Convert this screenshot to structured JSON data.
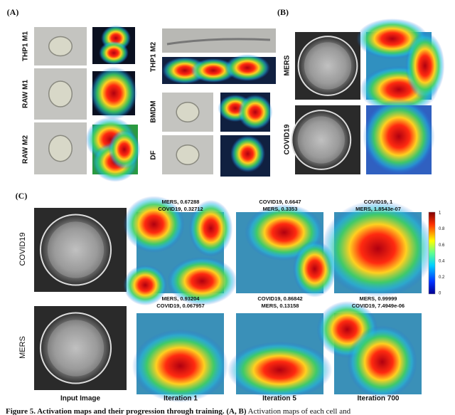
{
  "panel_a": {
    "label": "(A)",
    "cell_types": [
      "THP1 M1",
      "RAW M1",
      "RAW M2",
      "THP1 M2",
      "BMDM",
      "DF"
    ]
  },
  "panel_b": {
    "label": "(B)",
    "classes": [
      "MERS",
      "COVID19"
    ]
  },
  "panel_c": {
    "label": "(C)",
    "rows": [
      {
        "name": "COVID19",
        "predictions": [
          [
            "MERS, 0.67288",
            "COVID19, 0.32712"
          ],
          [
            "COVID19, 0.6647",
            "MERS, 0.3353"
          ],
          [
            "COVID19, 1",
            "MERS, 1.8543e-07"
          ]
        ]
      },
      {
        "name": "MERS",
        "predictions": [
          [
            "MERS, 0.93204",
            "COVID19, 0.067957"
          ],
          [
            "COVID19, 0.86842",
            "MERS, 0.13158"
          ],
          [
            "MERS, 0.99999",
            "COVID19, 7.4949e-06"
          ]
        ]
      }
    ],
    "columns": [
      "Input Image",
      "Iteration 1",
      "Iteration 5",
      "Iteration 700"
    ],
    "colorbar_ticks": [
      "1",
      "0.8",
      "0.6",
      "0.4",
      "0.2",
      "0"
    ]
  },
  "caption": {
    "label": "Figure 5.",
    "title": "Activation maps and their progression through training. (A, B)",
    "text": "Activation maps of each cell and"
  }
}
